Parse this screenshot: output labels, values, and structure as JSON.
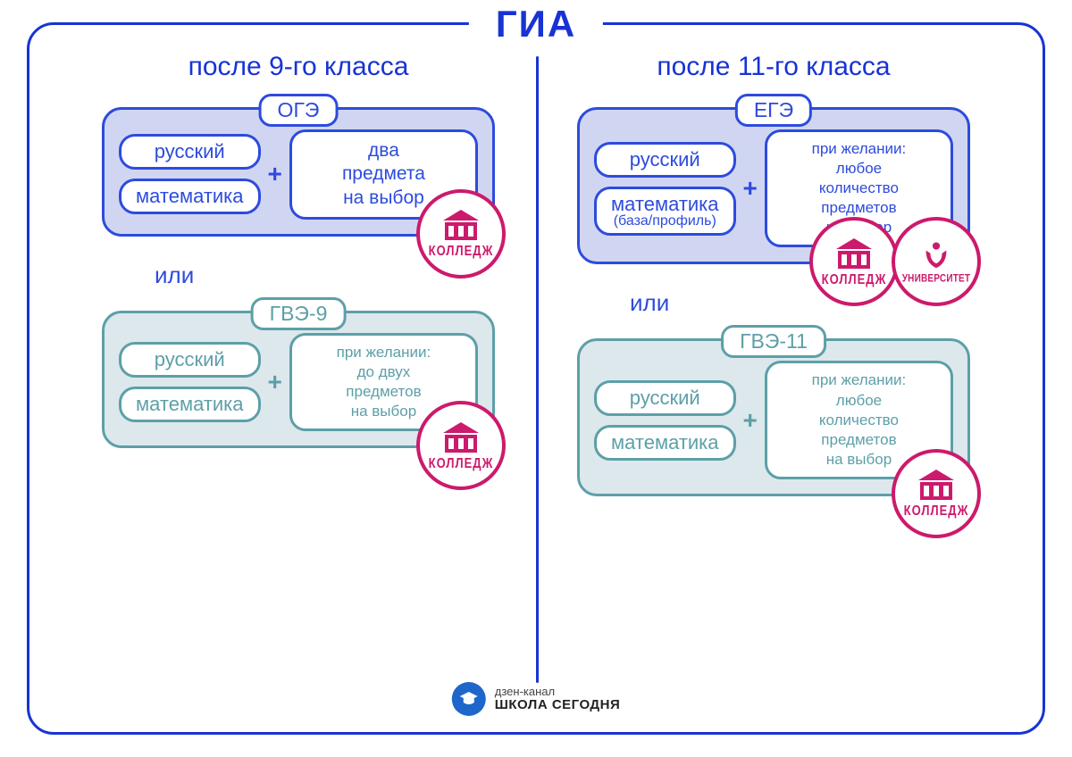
{
  "title": "ГИА",
  "left": {
    "heading": "после 9-го класса",
    "top": {
      "label": "ОГЭ",
      "subj1": "русский",
      "subj2": "математика",
      "choice": "два\nпредмета\nна выбор"
    },
    "or": "или",
    "bottom": {
      "label": "ГВЭ-9",
      "subj1": "русский",
      "subj2": "математика",
      "choice": "при желании:\nдо двух\nпредметов\nна выбор"
    }
  },
  "right": {
    "heading": "после 11-го класса",
    "top": {
      "label": "ЕГЭ",
      "subj1": "русский",
      "subj2": "математика",
      "subj2_sub": "(база/профиль)",
      "choice": "при желании:\nлюбое\nколичество\nпредметов\nна выбор"
    },
    "or": "или",
    "bottom": {
      "label": "ГВЭ-11",
      "subj1": "русский",
      "subj2": "математика",
      "choice": "при желании:\nлюбое\nколичество\nпредметов\nна выбор"
    }
  },
  "badges": {
    "college": "КОЛЛЕДЖ",
    "university": "УНИВЕРСИТЕТ"
  },
  "credit": {
    "line1": "дзен-канал",
    "line2": "ШКОЛА СЕГОДНЯ"
  },
  "colors": {
    "primary_blue": "#1833d4",
    "box_blue_border": "#2d4bdd",
    "box_blue_bg": "#d0d6f1",
    "box_teal_border": "#5d9fa8",
    "box_teal_bg": "#dce8ec",
    "magenta": "#cc1a6c",
    "credit_blue": "#1e66c9"
  }
}
